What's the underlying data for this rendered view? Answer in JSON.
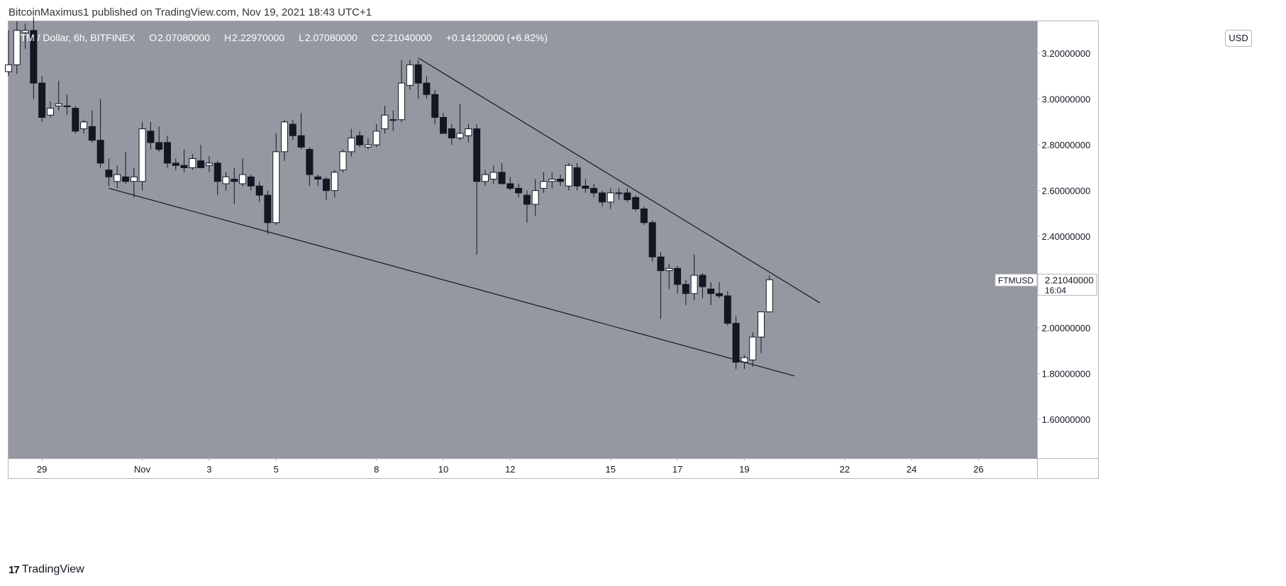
{
  "header": {
    "published_text": "BitcoinMaximus1 published on TradingView.com, Nov 19, 2021 18:43 UTC+1"
  },
  "footer": {
    "brand": "TradingView",
    "logo_icon": "tradingview-logo-icon"
  },
  "currency_badge": "USD",
  "legend": {
    "symbol": "FTM / Dollar, 6h, BITFINEX",
    "open_label": "O",
    "open": "2.07080000",
    "high_label": "H",
    "high": "2.22970000",
    "low_label": "L",
    "low": "2.07080000",
    "close_label": "C",
    "close": "2.21040000",
    "change": "+0.14120000 (+6.82%)"
  },
  "price_tag": {
    "symbol": "FTMUSD",
    "price": "2.21040000",
    "countdown": "16:04"
  },
  "colors": {
    "chart_bg": "#9598a1",
    "up": "#ffffff",
    "down": "#131722",
    "trendline": "#131722"
  },
  "chart_data": {
    "type": "candlestick",
    "interval": "6h",
    "y_axis": {
      "ticks": [
        1.6,
        1.8,
        2.0,
        2.2,
        2.4,
        2.6,
        2.8,
        3.0,
        3.2
      ],
      "tick_labels": [
        "1.60000000",
        "1.80000000",
        "2.00000000",
        "2.20000000",
        "2.40000000",
        "2.60000000",
        "2.80000000",
        "3.00000000",
        "3.20000000"
      ],
      "range": [
        1.43,
        3.34
      ]
    },
    "x_axis": {
      "range": [
        "2021-10-28T00:00",
        "2021-11-27T18:00"
      ],
      "ticks": [
        "2021-10-29",
        "2021-11-01",
        "2021-11-03",
        "2021-11-05",
        "2021-11-08",
        "2021-11-10",
        "2021-11-12",
        "2021-11-15",
        "2021-11-17",
        "2021-11-19",
        "2021-11-22",
        "2021-11-24",
        "2021-11-26"
      ],
      "tick_labels": [
        "29",
        "Nov",
        "3",
        "5",
        "8",
        "10",
        "12",
        "15",
        "17",
        "19",
        "22",
        "24",
        "26"
      ]
    },
    "candles": [
      {
        "t": "2021-10-28T00:00",
        "o": 3.12,
        "h": 3.3,
        "l": 3.1,
        "c": 3.15
      },
      {
        "t": "2021-10-28T06:00",
        "o": 3.15,
        "h": 3.34,
        "l": 3.11,
        "c": 3.3
      },
      {
        "t": "2021-10-28T12:00",
        "o": 3.29,
        "h": 3.33,
        "l": 3.22,
        "c": 3.3
      },
      {
        "t": "2021-10-28T18:00",
        "o": 3.3,
        "h": 3.36,
        "l": 3.0,
        "c": 3.07
      },
      {
        "t": "2021-10-29T00:00",
        "o": 3.07,
        "h": 3.1,
        "l": 2.9,
        "c": 2.92
      },
      {
        "t": "2021-10-29T06:00",
        "o": 2.93,
        "h": 2.99,
        "l": 2.92,
        "c": 2.96
      },
      {
        "t": "2021-10-29T12:00",
        "o": 2.97,
        "h": 3.08,
        "l": 2.95,
        "c": 2.98
      },
      {
        "t": "2021-10-29T18:00",
        "o": 2.97,
        "h": 3.02,
        "l": 2.93,
        "c": 2.97
      },
      {
        "t": "2021-10-30T00:00",
        "o": 2.96,
        "h": 2.97,
        "l": 2.85,
        "c": 2.86
      },
      {
        "t": "2021-10-30T06:00",
        "o": 2.87,
        "h": 2.91,
        "l": 2.85,
        "c": 2.9
      },
      {
        "t": "2021-10-30T12:00",
        "o": 2.88,
        "h": 2.95,
        "l": 2.81,
        "c": 2.82
      },
      {
        "t": "2021-10-30T18:00",
        "o": 2.82,
        "h": 3.0,
        "l": 2.7,
        "c": 2.72
      },
      {
        "t": "2021-10-31T00:00",
        "o": 2.69,
        "h": 2.74,
        "l": 2.62,
        "c": 2.66
      },
      {
        "t": "2021-10-31T06:00",
        "o": 2.64,
        "h": 2.71,
        "l": 2.61,
        "c": 2.67
      },
      {
        "t": "2021-10-31T12:00",
        "o": 2.66,
        "h": 2.77,
        "l": 2.63,
        "c": 2.64
      },
      {
        "t": "2021-10-31T18:00",
        "o": 2.64,
        "h": 2.7,
        "l": 2.57,
        "c": 2.66
      },
      {
        "t": "2021-11-01T00:00",
        "o": 2.64,
        "h": 2.9,
        "l": 2.6,
        "c": 2.87
      },
      {
        "t": "2021-11-01T06:00",
        "o": 2.86,
        "h": 2.9,
        "l": 2.78,
        "c": 2.81
      },
      {
        "t": "2021-11-01T12:00",
        "o": 2.81,
        "h": 2.88,
        "l": 2.77,
        "c": 2.78
      },
      {
        "t": "2021-11-01T18:00",
        "o": 2.81,
        "h": 2.84,
        "l": 2.7,
        "c": 2.72
      },
      {
        "t": "2021-11-02T00:00",
        "o": 2.72,
        "h": 2.74,
        "l": 2.69,
        "c": 2.71
      },
      {
        "t": "2021-11-02T06:00",
        "o": 2.71,
        "h": 2.78,
        "l": 2.68,
        "c": 2.7
      },
      {
        "t": "2021-11-02T12:00",
        "o": 2.7,
        "h": 2.76,
        "l": 2.69,
        "c": 2.74
      },
      {
        "t": "2021-11-02T18:00",
        "o": 2.73,
        "h": 2.8,
        "l": 2.7,
        "c": 2.7
      },
      {
        "t": "2021-11-03T00:00",
        "o": 2.71,
        "h": 2.75,
        "l": 2.68,
        "c": 2.72
      },
      {
        "t": "2021-11-03T06:00",
        "o": 2.72,
        "h": 2.73,
        "l": 2.58,
        "c": 2.64
      },
      {
        "t": "2021-11-03T12:00",
        "o": 2.63,
        "h": 2.68,
        "l": 2.6,
        "c": 2.66
      },
      {
        "t": "2021-11-03T18:00",
        "o": 2.65,
        "h": 2.7,
        "l": 2.54,
        "c": 2.64
      },
      {
        "t": "2021-11-04T00:00",
        "o": 2.63,
        "h": 2.74,
        "l": 2.62,
        "c": 2.67
      },
      {
        "t": "2021-11-04T06:00",
        "o": 2.66,
        "h": 2.67,
        "l": 2.6,
        "c": 2.62
      },
      {
        "t": "2021-11-04T12:00",
        "o": 2.62,
        "h": 2.64,
        "l": 2.55,
        "c": 2.58
      },
      {
        "t": "2021-11-04T18:00",
        "o": 2.58,
        "h": 2.6,
        "l": 2.41,
        "c": 2.46
      },
      {
        "t": "2021-11-05T00:00",
        "o": 2.46,
        "h": 2.85,
        "l": 2.45,
        "c": 2.77
      },
      {
        "t": "2021-11-05T06:00",
        "o": 2.77,
        "h": 2.91,
        "l": 2.73,
        "c": 2.9
      },
      {
        "t": "2021-11-05T12:00",
        "o": 2.89,
        "h": 2.91,
        "l": 2.82,
        "c": 2.84
      },
      {
        "t": "2021-11-05T18:00",
        "o": 2.84,
        "h": 2.94,
        "l": 2.78,
        "c": 2.79
      },
      {
        "t": "2021-11-06T00:00",
        "o": 2.78,
        "h": 2.79,
        "l": 2.62,
        "c": 2.67
      },
      {
        "t": "2021-11-06T06:00",
        "o": 2.66,
        "h": 2.67,
        "l": 2.62,
        "c": 2.65
      },
      {
        "t": "2021-11-06T12:00",
        "o": 2.65,
        "h": 2.66,
        "l": 2.56,
        "c": 2.6
      },
      {
        "t": "2021-11-06T18:00",
        "o": 2.6,
        "h": 2.69,
        "l": 2.57,
        "c": 2.68
      },
      {
        "t": "2021-11-07T00:00",
        "o": 2.69,
        "h": 2.78,
        "l": 2.68,
        "c": 2.77
      },
      {
        "t": "2021-11-07T06:00",
        "o": 2.77,
        "h": 2.87,
        "l": 2.75,
        "c": 2.83
      },
      {
        "t": "2021-11-07T12:00",
        "o": 2.84,
        "h": 2.86,
        "l": 2.79,
        "c": 2.8
      },
      {
        "t": "2021-11-07T18:00",
        "o": 2.79,
        "h": 2.83,
        "l": 2.78,
        "c": 2.8
      },
      {
        "t": "2021-11-08T00:00",
        "o": 2.8,
        "h": 2.89,
        "l": 2.79,
        "c": 2.86
      },
      {
        "t": "2021-11-08T06:00",
        "o": 2.87,
        "h": 2.97,
        "l": 2.85,
        "c": 2.93
      },
      {
        "t": "2021-11-08T12:00",
        "o": 2.91,
        "h": 2.95,
        "l": 2.86,
        "c": 2.91
      },
      {
        "t": "2021-11-08T18:00",
        "o": 2.91,
        "h": 3.17,
        "l": 2.9,
        "c": 3.07
      },
      {
        "t": "2021-11-09T00:00",
        "o": 3.06,
        "h": 3.17,
        "l": 3.04,
        "c": 3.15
      },
      {
        "t": "2021-11-09T06:00",
        "o": 3.15,
        "h": 3.17,
        "l": 3.0,
        "c": 3.07
      },
      {
        "t": "2021-11-09T12:00",
        "o": 3.07,
        "h": 3.1,
        "l": 3.0,
        "c": 3.02
      },
      {
        "t": "2021-11-09T18:00",
        "o": 3.02,
        "h": 3.04,
        "l": 2.89,
        "c": 2.92
      },
      {
        "t": "2021-11-10T00:00",
        "o": 2.92,
        "h": 2.94,
        "l": 2.86,
        "c": 2.85
      },
      {
        "t": "2021-11-10T06:00",
        "o": 2.87,
        "h": 2.89,
        "l": 2.8,
        "c": 2.83
      },
      {
        "t": "2021-11-10T12:00",
        "o": 2.83,
        "h": 2.98,
        "l": 2.82,
        "c": 2.85
      },
      {
        "t": "2021-11-10T18:00",
        "o": 2.84,
        "h": 2.89,
        "l": 2.81,
        "c": 2.87
      },
      {
        "t": "2021-11-11T00:00",
        "o": 2.87,
        "h": 2.89,
        "l": 2.32,
        "c": 2.64
      },
      {
        "t": "2021-11-11T06:00",
        "o": 2.64,
        "h": 2.69,
        "l": 2.62,
        "c": 2.67
      },
      {
        "t": "2021-11-11T12:00",
        "o": 2.65,
        "h": 2.71,
        "l": 2.63,
        "c": 2.68
      },
      {
        "t": "2021-11-11T18:00",
        "o": 2.68,
        "h": 2.72,
        "l": 2.63,
        "c": 2.63
      },
      {
        "t": "2021-11-12T00:00",
        "o": 2.63,
        "h": 2.66,
        "l": 2.6,
        "c": 2.61
      },
      {
        "t": "2021-11-12T06:00",
        "o": 2.61,
        "h": 2.63,
        "l": 2.57,
        "c": 2.59
      },
      {
        "t": "2021-11-12T12:00",
        "o": 2.58,
        "h": 2.6,
        "l": 2.46,
        "c": 2.54
      },
      {
        "t": "2021-11-12T18:00",
        "o": 2.54,
        "h": 2.65,
        "l": 2.49,
        "c": 2.6
      },
      {
        "t": "2021-11-13T00:00",
        "o": 2.61,
        "h": 2.68,
        "l": 2.59,
        "c": 2.64
      },
      {
        "t": "2021-11-13T06:00",
        "o": 2.64,
        "h": 2.68,
        "l": 2.61,
        "c": 2.65
      },
      {
        "t": "2021-11-13T12:00",
        "o": 2.65,
        "h": 2.67,
        "l": 2.62,
        "c": 2.64
      },
      {
        "t": "2021-11-13T18:00",
        "o": 2.62,
        "h": 2.72,
        "l": 2.6,
        "c": 2.71
      },
      {
        "t": "2021-11-14T00:00",
        "o": 2.7,
        "h": 2.72,
        "l": 2.6,
        "c": 2.62
      },
      {
        "t": "2021-11-14T06:00",
        "o": 2.62,
        "h": 2.65,
        "l": 2.59,
        "c": 2.61
      },
      {
        "t": "2021-11-14T12:00",
        "o": 2.61,
        "h": 2.63,
        "l": 2.57,
        "c": 2.59
      },
      {
        "t": "2021-11-14T18:00",
        "o": 2.59,
        "h": 2.6,
        "l": 2.53,
        "c": 2.55
      },
      {
        "t": "2021-11-15T00:00",
        "o": 2.55,
        "h": 2.61,
        "l": 2.52,
        "c": 2.59
      },
      {
        "t": "2021-11-15T06:00",
        "o": 2.59,
        "h": 2.61,
        "l": 2.56,
        "c": 2.59
      },
      {
        "t": "2021-11-15T12:00",
        "o": 2.59,
        "h": 2.61,
        "l": 2.55,
        "c": 2.56
      },
      {
        "t": "2021-11-15T18:00",
        "o": 2.57,
        "h": 2.58,
        "l": 2.51,
        "c": 2.52
      },
      {
        "t": "2021-11-16T00:00",
        "o": 2.52,
        "h": 2.53,
        "l": 2.45,
        "c": 2.46
      },
      {
        "t": "2021-11-16T06:00",
        "o": 2.46,
        "h": 2.47,
        "l": 2.29,
        "c": 2.31
      },
      {
        "t": "2021-11-16T12:00",
        "o": 2.31,
        "h": 2.33,
        "l": 2.04,
        "c": 2.25
      },
      {
        "t": "2021-11-16T18:00",
        "o": 2.25,
        "h": 2.28,
        "l": 2.17,
        "c": 2.26
      },
      {
        "t": "2021-11-17T00:00",
        "o": 2.26,
        "h": 2.27,
        "l": 2.15,
        "c": 2.19
      },
      {
        "t": "2021-11-17T06:00",
        "o": 2.19,
        "h": 2.21,
        "l": 2.1,
        "c": 2.15
      },
      {
        "t": "2021-11-17T12:00",
        "o": 2.15,
        "h": 2.32,
        "l": 2.12,
        "c": 2.23
      },
      {
        "t": "2021-11-17T18:00",
        "o": 2.23,
        "h": 2.24,
        "l": 2.13,
        "c": 2.18
      },
      {
        "t": "2021-11-18T00:00",
        "o": 2.17,
        "h": 2.2,
        "l": 2.1,
        "c": 2.15
      },
      {
        "t": "2021-11-18T06:00",
        "o": 2.15,
        "h": 2.2,
        "l": 2.13,
        "c": 2.14
      },
      {
        "t": "2021-11-18T12:00",
        "o": 2.14,
        "h": 2.16,
        "l": 2.01,
        "c": 2.02
      },
      {
        "t": "2021-11-18T18:00",
        "o": 2.02,
        "h": 2.05,
        "l": 1.82,
        "c": 1.85
      },
      {
        "t": "2021-11-19T00:00",
        "o": 1.85,
        "h": 1.88,
        "l": 1.82,
        "c": 1.87
      },
      {
        "t": "2021-11-19T06:00",
        "o": 1.86,
        "h": 1.98,
        "l": 1.83,
        "c": 1.96
      },
      {
        "t": "2021-11-19T12:00",
        "o": 1.96,
        "h": 2.07,
        "l": 1.89,
        "c": 2.07
      },
      {
        "t": "2021-11-19T18:00",
        "o": 2.07,
        "h": 2.2297,
        "l": 2.0708,
        "c": 2.2104
      }
    ],
    "trendlines": [
      {
        "name": "upper-resistance",
        "p1": {
          "t": "2021-11-09T06:00",
          "price": 3.18
        },
        "p2": {
          "t": "2021-11-21T06:00",
          "price": 2.11
        }
      },
      {
        "name": "lower-support",
        "p1": {
          "t": "2021-10-31T00:00",
          "price": 2.61
        },
        "p2": {
          "t": "2021-11-20T12:00",
          "price": 1.79
        }
      }
    ],
    "last_price": 2.2104
  }
}
